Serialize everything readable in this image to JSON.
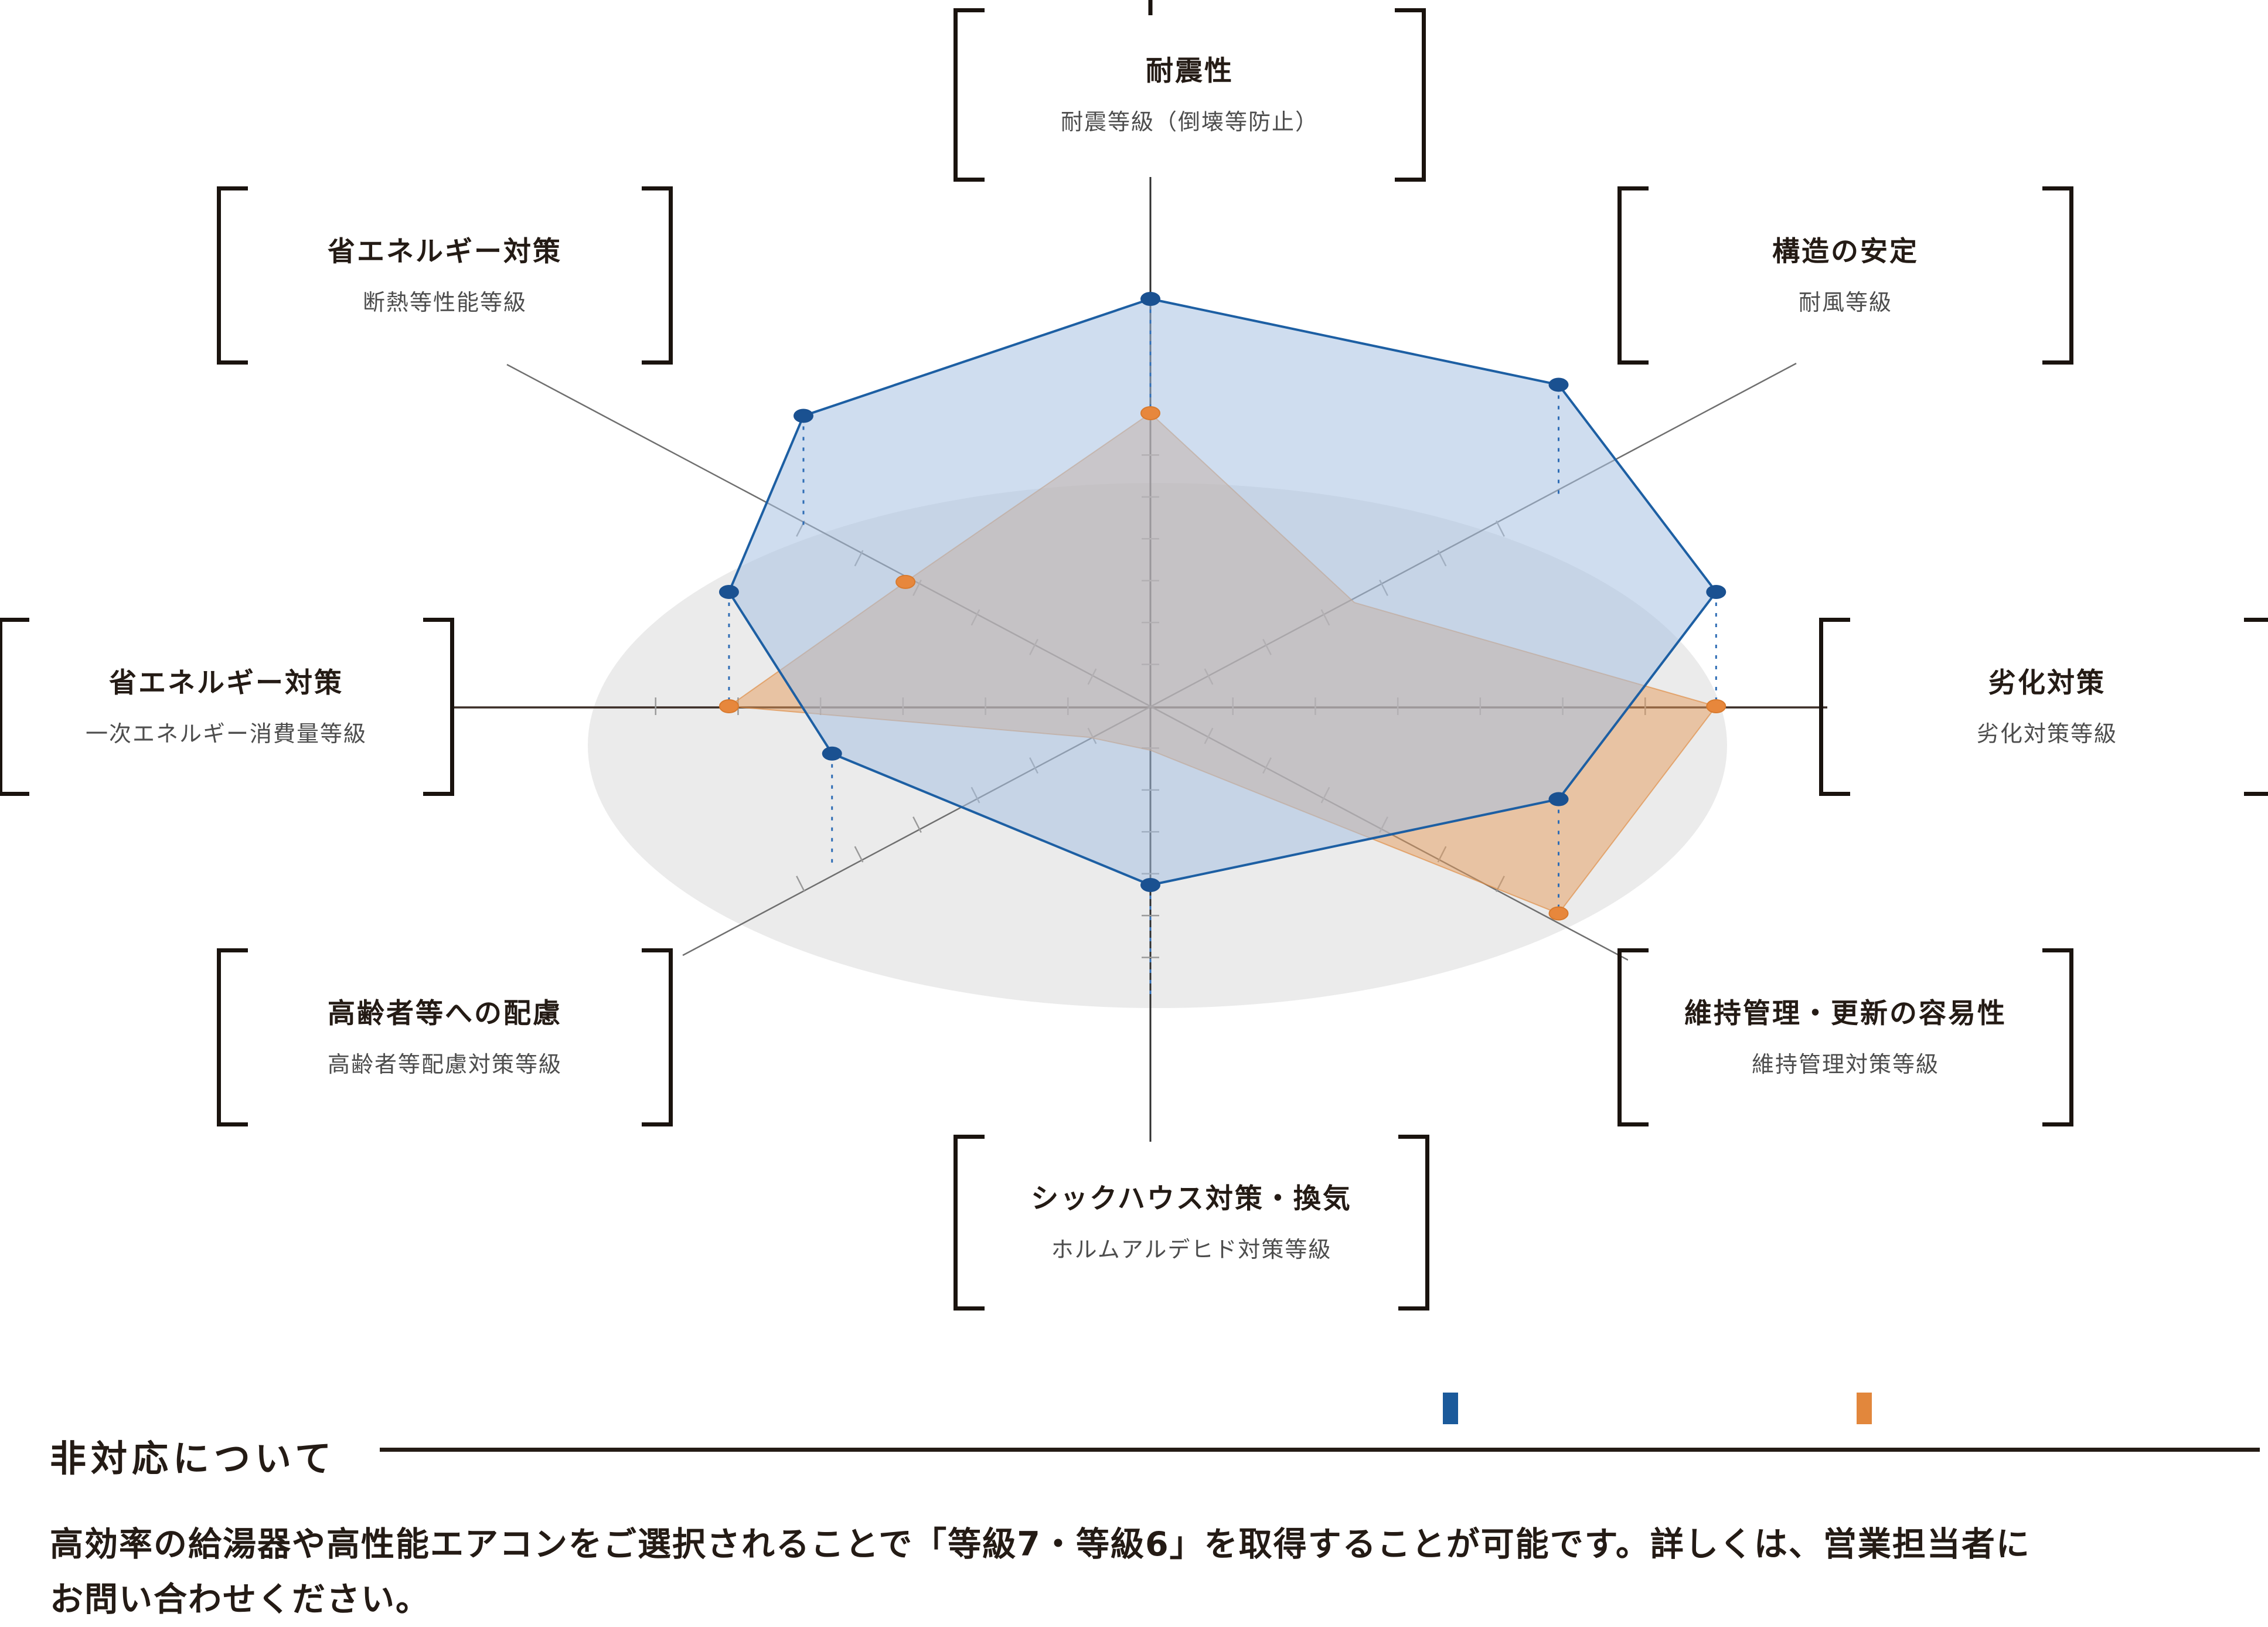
{
  "chart_data": {
    "type": "radar",
    "projection": "tilted-3d-plate",
    "title": "",
    "axes": [
      {
        "position": "top",
        "category": "耐震性",
        "grade_label": "耐震等級（倒壊等防止）"
      },
      {
        "position": "top-right",
        "category": "構造の安定",
        "grade_label": "耐風等級"
      },
      {
        "position": "right",
        "category": "劣化対策",
        "grade_label": "劣化対策等級"
      },
      {
        "position": "bottom-right",
        "category": "維持管理・更新の容易性",
        "grade_label": "維持管理対策等級"
      },
      {
        "position": "bottom",
        "category": "シックハウス対策・換気",
        "grade_label": "ホルムアルデヒド対策等級"
      },
      {
        "position": "bottom-left",
        "category": "高齢者等への配慮",
        "grade_label": "高齢者等配慮対策等級"
      },
      {
        "position": "left",
        "category": "省エネルギー対策",
        "grade_label": "一次エネルギー消費量等級"
      },
      {
        "position": "top-left",
        "category": "省エネルギー対策",
        "grade_label": "断熱等性能等級"
      }
    ],
    "series": [
      {
        "name": "series-blue-elevated",
        "stroke_color": "#1d5fa3",
        "fill_color": "rgba(168,193,226,0.55)",
        "dot_color": "#1a5191",
        "values": [
          1.0,
          1.0,
          0.98,
          1.0,
          1.0,
          0.78,
          0.73,
          0.85
        ]
      },
      {
        "name": "series-orange-base",
        "stroke_color": "rgba(223,138,64,0.65)",
        "fill_color": "rgba(230,155,92,0.5)",
        "dot_color": "#e7873c",
        "values": [
          1.0,
          0.5,
          0.98,
          1.0,
          0.15,
          0.15,
          0.73,
          0.6
        ],
        "visible_dot_axes": [
          0,
          2,
          3,
          6,
          7
        ]
      }
    ],
    "scale": {
      "divisions": 7,
      "tick_labels_visible": false,
      "gridlines": false
    },
    "legend": [
      {
        "color": "#1b5a9b",
        "label": ""
      },
      {
        "color": "#e2873c",
        "label": ""
      }
    ]
  },
  "footnote": {
    "heading": "非対応について",
    "body_line1": "高効率の給湯器や高性能エアコンをご選択されることで「等級7・等級6」を取得することが可能です。詳しくは、営業担当者に",
    "body_line2": "お問い合わせください。"
  }
}
